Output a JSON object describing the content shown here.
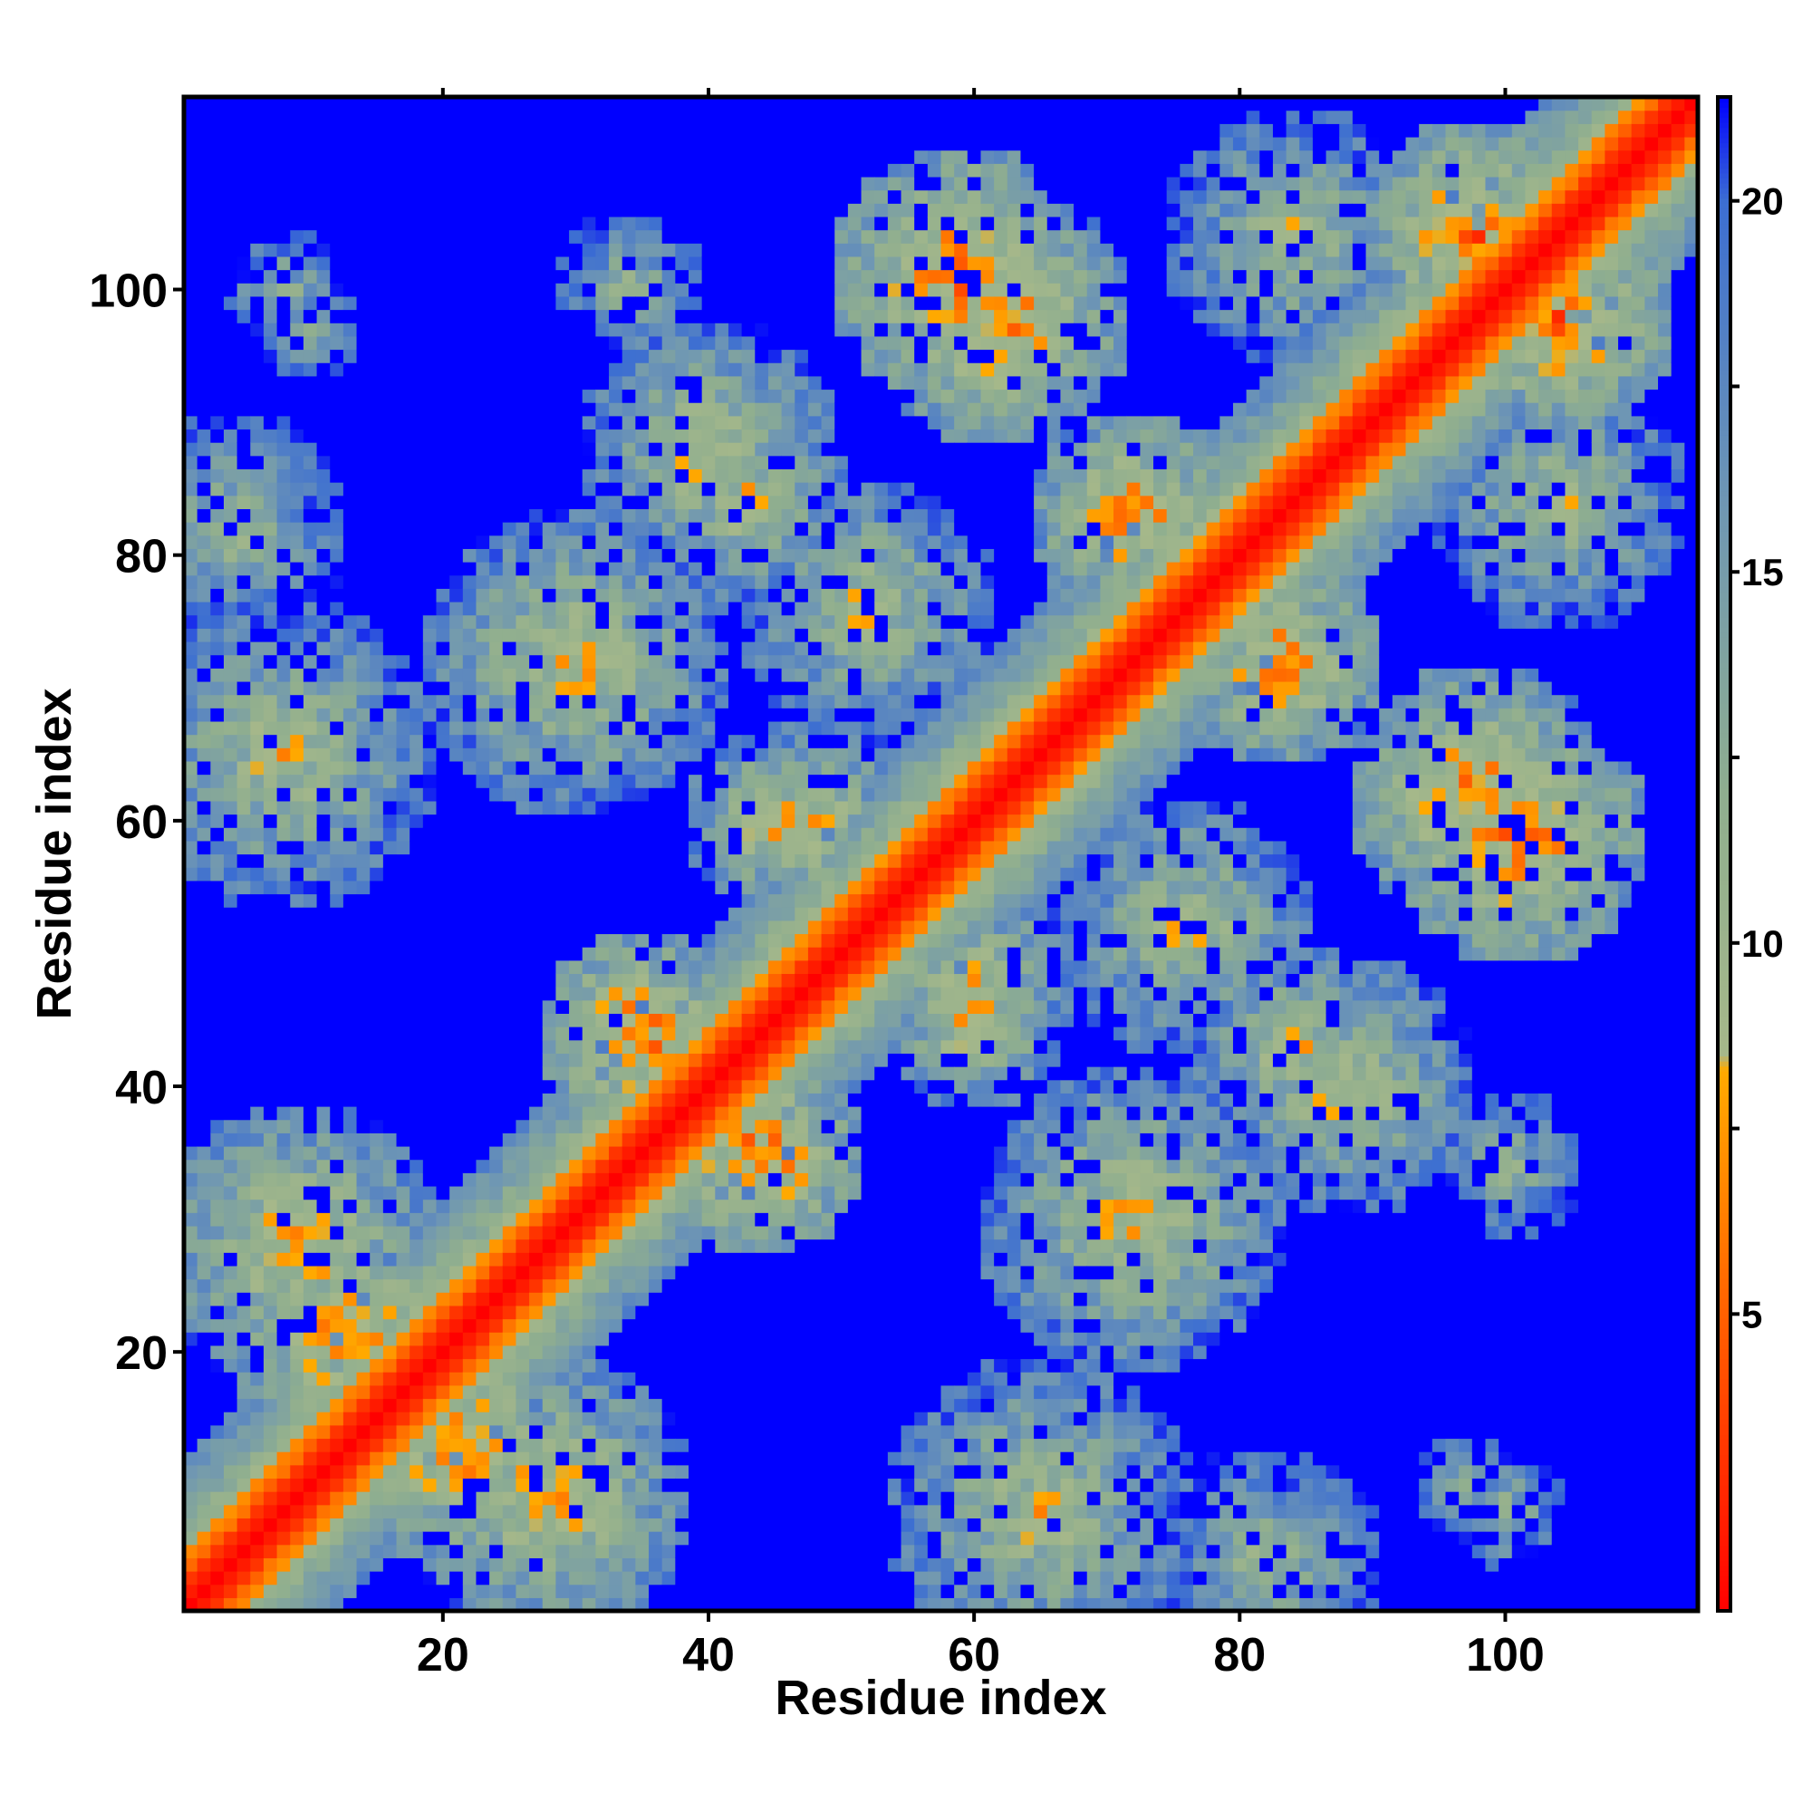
{
  "chart_data": {
    "type": "heatmap",
    "title": "",
    "xlabel": "Residue index",
    "ylabel": "Residue index",
    "n_residues": 114,
    "xlim": [
      0.5,
      114.5
    ],
    "ylim": [
      0.5,
      114.5
    ],
    "xticks": [
      20,
      40,
      60,
      80,
      100
    ],
    "xtick_labels": [
      "20",
      "40",
      "60",
      "80",
      "100"
    ],
    "yticks": [
      20,
      40,
      60,
      80,
      100
    ],
    "ytick_labels": [
      "20",
      "40",
      "60",
      "80",
      "100"
    ],
    "grid": false,
    "colorbar": {
      "range": [
        1,
        21.4
      ],
      "ticks": [
        5,
        10,
        15,
        20
      ],
      "tick_labels": [
        "5",
        "10",
        "15",
        "20"
      ],
      "stops": [
        {
          "value": 1,
          "color": "#ff0000"
        },
        {
          "value": 4,
          "color": "#ff4a00"
        },
        {
          "value": 8.3,
          "color": "#ffaa00"
        },
        {
          "value": 8.5,
          "color": "#a6b88a"
        },
        {
          "value": 12,
          "color": "#8fae8f"
        },
        {
          "value": 16,
          "color": "#6e96b4"
        },
        {
          "value": 20,
          "color": "#3c6ed2"
        },
        {
          "value": 21.4,
          "color": "#0000ff"
        }
      ]
    },
    "value_description": "Residue-residue distance map; values near 1 on the diagonal (red), about 5-8 in the adjacent orange bands, 9-20 in the greenish/grey-blue halos, and 21+ (blue) elsewhere.",
    "diagonal_band_halfwidths": {
      "red": 1.5,
      "orange": 3.5,
      "halo": 8.0
    },
    "contact_clusters": [
      {
        "x": 62,
        "y": 98,
        "r": 10,
        "core": 6.5
      },
      {
        "x": 98,
        "y": 62,
        "r": 10,
        "core": 6.5
      },
      {
        "x": 72,
        "y": 83,
        "r": 8,
        "core": 6.5
      },
      {
        "x": 83,
        "y": 72,
        "r": 8,
        "core": 6.5
      },
      {
        "x": 101,
        "y": 59,
        "r": 10,
        "core": 6.0
      },
      {
        "x": 59,
        "y": 101,
        "r": 10,
        "core": 6.0
      },
      {
        "x": 104,
        "y": 98,
        "r": 9,
        "core": 6.0
      },
      {
        "x": 98,
        "y": 104,
        "r": 9,
        "core": 6.0
      },
      {
        "x": 35,
        "y": 44,
        "r": 8,
        "core": 6.0
      },
      {
        "x": 44,
        "y": 35,
        "r": 8,
        "core": 6.0
      },
      {
        "x": 13,
        "y": 21,
        "r": 9,
        "core": 6.5
      },
      {
        "x": 21,
        "y": 13,
        "r": 9,
        "core": 6.5
      },
      {
        "x": 8,
        "y": 65,
        "r": 12,
        "core": 9.5
      },
      {
        "x": 65,
        "y": 8,
        "r": 12,
        "core": 9.5
      },
      {
        "x": 30,
        "y": 72,
        "r": 12,
        "core": 9.0
      },
      {
        "x": 72,
        "y": 30,
        "r": 12,
        "core": 9.0
      },
      {
        "x": 40,
        "y": 88,
        "r": 10,
        "core": 9.0
      },
      {
        "x": 88,
        "y": 40,
        "r": 10,
        "core": 9.0
      },
      {
        "x": 9,
        "y": 28,
        "r": 11,
        "core": 8.0
      },
      {
        "x": 28,
        "y": 9,
        "r": 11,
        "core": 8.0
      },
      {
        "x": 52,
        "y": 76,
        "r": 10,
        "core": 9.5
      },
      {
        "x": 76,
        "y": 52,
        "r": 10,
        "core": 9.5
      },
      {
        "x": 104,
        "y": 84,
        "r": 10,
        "core": 10.0
      },
      {
        "x": 84,
        "y": 104,
        "r": 10,
        "core": 10.0
      },
      {
        "x": 4,
        "y": 82,
        "r": 9,
        "core": 11.0
      },
      {
        "x": 82,
        "y": 4,
        "r": 9,
        "core": 11.0
      },
      {
        "x": 60,
        "y": 48,
        "r": 8,
        "core": 9.0
      },
      {
        "x": 48,
        "y": 60,
        "r": 8,
        "core": 9.0
      },
      {
        "x": 84,
        "y": 43,
        "r": 8,
        "core": 9.0
      },
      {
        "x": 43,
        "y": 84,
        "r": 8,
        "core": 9.0
      },
      {
        "x": 45,
        "y": 60,
        "r": 7,
        "core": 8.0
      },
      {
        "x": 60,
        "y": 45,
        "r": 7,
        "core": 8.0
      },
      {
        "x": 110,
        "y": 112,
        "r": 7,
        "core": 8.0
      },
      {
        "x": 112,
        "y": 110,
        "r": 7,
        "core": 8.0
      },
      {
        "x": 34,
        "y": 100,
        "r": 6,
        "core": 11.5
      },
      {
        "x": 100,
        "y": 34,
        "r": 6,
        "core": 11.5
      },
      {
        "x": 8,
        "y": 100,
        "r": 5,
        "core": 12.0
      },
      {
        "x": 100,
        "y": 8,
        "r": 5,
        "core": 12.0
      },
      {
        "x": 97,
        "y": 10,
        "r": 4,
        "core": 12.0
      },
      {
        "x": 10,
        "y": 97,
        "r": 4,
        "core": 12.0
      }
    ]
  }
}
